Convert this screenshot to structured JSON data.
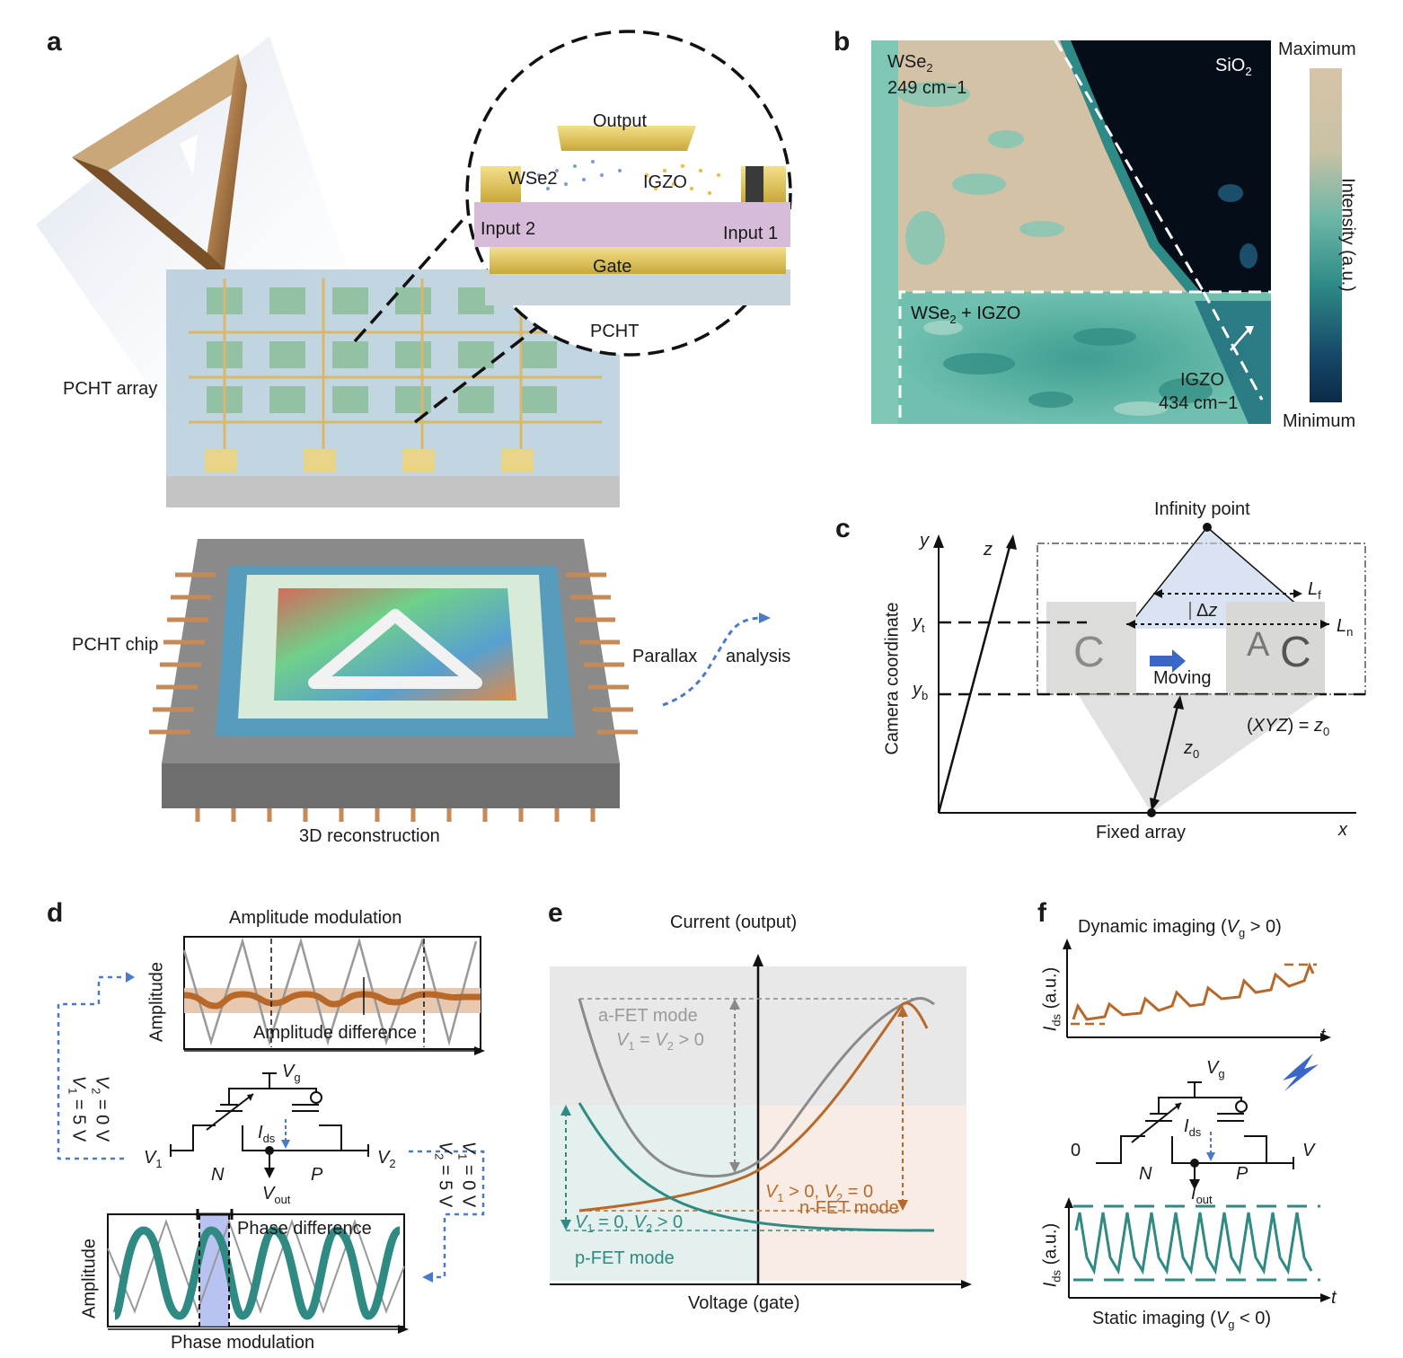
{
  "panels": {
    "a": {
      "letter": "a",
      "labels": {
        "output": "Output",
        "wse2": "WSe2",
        "igzo": "IGZO",
        "input2": "Input 2",
        "input1": "Input 1",
        "gate": "Gate",
        "pcht": "PCHT",
        "pcht_array": "PCHT array",
        "pcht_chip": "PCHT chip",
        "parallax": "Parallax",
        "analysis": "analysis",
        "recon": "3D reconstruction"
      }
    },
    "b": {
      "letter": "b",
      "labels": {
        "wse2": "WSe2",
        "wse2_wavenumber": "249 cm−1",
        "sio2": "SiO2",
        "wse2_igzo": "WSe2 + IGZO",
        "igzo": "IGZO",
        "igzo_wavenumber": "434 cm−1",
        "colorbar_max": "Maximum",
        "colorbar_min": "Minimum",
        "colorbar_title": "Intensity (a.u.)"
      },
      "colors": {
        "max": "#d6c4a8",
        "mid": "#4aa89a",
        "min": "#0b2a48"
      }
    },
    "c": {
      "letter": "c",
      "labels": {
        "infinity": "Infinity point",
        "y": "y",
        "z": "z",
        "yt": "yt",
        "yb": "yb",
        "camera": "Camera coordinate",
        "lf": "Lf",
        "ln": "Ln",
        "dz": "Δz",
        "moving": "Moving",
        "xyz": "(XYZ) = z0",
        "z0": "z0",
        "fixed": "Fixed array",
        "x": "x"
      }
    },
    "d": {
      "letter": "d",
      "labels": {
        "amp_mod": "Amplitude modulation",
        "amp_axis": "Amplitude",
        "amp_diff": "Amplitude difference",
        "v1_5": "V1 = 5 V",
        "v2_0": "V2 = 0 V",
        "vg": "Vg",
        "ids": "Ids",
        "v1": "V1",
        "v2": "V2",
        "n": "N",
        "p": "P",
        "vout": "Vout",
        "v1_0": "V1 = 0 V",
        "v2_5": "V2 = 5 V",
        "phase_diff": "Phase difference",
        "amp_axis2": "Amplitude",
        "phase_mod": "Phase modulation"
      }
    },
    "e": {
      "letter": "e",
      "labels": {
        "current": "Current (output)",
        "voltage": "Voltage (gate)",
        "afet": "a-FET mode",
        "afet_cond": "V1 = V2 > 0",
        "n_cond": "V1 > 0, V2 = 0",
        "nfet": "n-FET mode",
        "p_cond": "V1 = 0, V2 > 0",
        "pfet": "p-FET mode"
      },
      "colors": {
        "gray": "#8a8a8a",
        "orange": "#b8692a",
        "teal": "#2e8a82"
      }
    },
    "f": {
      "letter": "f",
      "labels": {
        "dynamic": "Dynamic imaging (Vg > 0)",
        "ids_axis": "Ids (a.u.)",
        "t": "t",
        "vg": "Vg",
        "ids": "Ids",
        "zero": "0",
        "v": "V",
        "n": "N",
        "p": "P",
        "iout": "Iout",
        "ids_axis2": "Ids (a.u.)",
        "t2": "t",
        "static": "Static imaging (Vg < 0)"
      }
    }
  }
}
